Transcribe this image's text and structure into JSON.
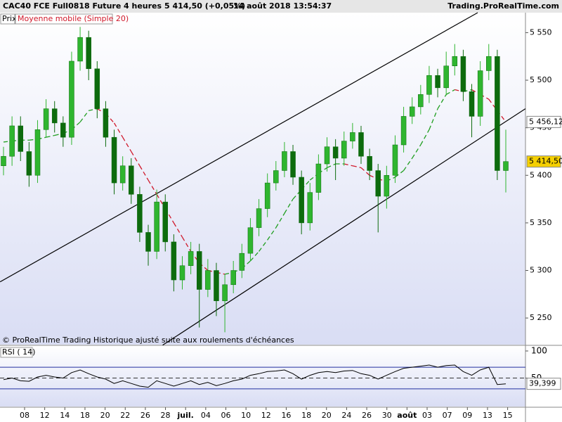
{
  "chart_data": {
    "type": "candlestick",
    "header": {
      "instrument": "CAC40 FCE Full0818 Future",
      "period": "4 heures",
      "quote": "5 414,50 (+0,05%)",
      "datetime": "14 août 2018 13:54:37",
      "site": "Trading.ProRealTime.com"
    },
    "legend": {
      "price": "Prix",
      "sma": "Moyenne mobile (Simple 20)"
    },
    "footnote": "© ProRealTime Trading  Historique ajusté suite aux roulements d'échéances",
    "x_labels": [
      "08",
      "12",
      "14",
      "18",
      "20",
      "22",
      "26",
      "28",
      "juil.",
      "04",
      "06",
      "10",
      "12",
      "16",
      "18",
      "20",
      "24",
      "26",
      "30",
      "août",
      "03",
      "07",
      "09",
      "13",
      "15"
    ],
    "open": [
      5410,
      5420,
      5452,
      5425,
      5400,
      5448,
      5470,
      5455,
      5440,
      5520,
      5545,
      5512,
      5470,
      5440,
      5392,
      5410,
      5380,
      5340,
      5320,
      5372,
      5330,
      5290,
      5305,
      5320,
      5280,
      5300,
      5268,
      5285,
      5300,
      5318,
      5345,
      5365,
      5392,
      5405,
      5425,
      5398,
      5350,
      5382,
      5412,
      5430,
      5418,
      5436,
      5445,
      5420,
      5405,
      5378,
      5400,
      5432,
      5462,
      5472,
      5485,
      5505,
      5492,
      5515,
      5525,
      5488,
      5462,
      5510,
      5525,
      5405
    ],
    "high": [
      5430,
      5462,
      5462,
      5435,
      5458,
      5480,
      5478,
      5462,
      5530,
      5556,
      5552,
      5520,
      5478,
      5448,
      5420,
      5418,
      5388,
      5348,
      5385,
      5380,
      5338,
      5315,
      5330,
      5328,
      5312,
      5308,
      5296,
      5310,
      5328,
      5355,
      5375,
      5402,
      5415,
      5435,
      5432,
      5405,
      5392,
      5422,
      5440,
      5438,
      5446,
      5455,
      5452,
      5428,
      5412,
      5410,
      5442,
      5472,
      5482,
      5495,
      5515,
      5512,
      5530,
      5538,
      5532,
      5496,
      5520,
      5538,
      5532,
      5448
    ],
    "low": [
      5400,
      5410,
      5415,
      5388,
      5392,
      5440,
      5445,
      5430,
      5432,
      5510,
      5500,
      5460,
      5430,
      5380,
      5384,
      5370,
      5330,
      5305,
      5312,
      5320,
      5278,
      5280,
      5296,
      5240,
      5272,
      5252,
      5235,
      5276,
      5292,
      5310,
      5336,
      5356,
      5384,
      5398,
      5390,
      5338,
      5342,
      5374,
      5404,
      5395,
      5410,
      5428,
      5412,
      5395,
      5340,
      5365,
      5392,
      5424,
      5454,
      5464,
      5476,
      5482,
      5484,
      5505,
      5478,
      5440,
      5452,
      5500,
      5395,
      5382
    ],
    "close": [
      5420,
      5452,
      5425,
      5400,
      5448,
      5470,
      5455,
      5440,
      5520,
      5545,
      5512,
      5470,
      5440,
      5392,
      5410,
      5380,
      5340,
      5320,
      5372,
      5330,
      5290,
      5305,
      5320,
      5280,
      5300,
      5268,
      5285,
      5300,
      5318,
      5345,
      5365,
      5392,
      5405,
      5425,
      5398,
      5350,
      5382,
      5412,
      5430,
      5418,
      5436,
      5445,
      5420,
      5405,
      5378,
      5400,
      5432,
      5462,
      5472,
      5485,
      5505,
      5492,
      5515,
      5525,
      5488,
      5462,
      5510,
      5525,
      5405,
      5414.5
    ],
    "close_label": "5 414,50",
    "sma": [
      5435,
      5436,
      5437,
      5437,
      5438,
      5440,
      5442,
      5444,
      5448,
      5456,
      5468,
      5470,
      5465,
      5455,
      5440,
      5425,
      5410,
      5395,
      5380,
      5365,
      5350,
      5335,
      5320,
      5308,
      5300,
      5298,
      5296,
      5298,
      5302,
      5310,
      5320,
      5332,
      5345,
      5360,
      5375,
      5385,
      5395,
      5402,
      5408,
      5412,
      5412,
      5410,
      5408,
      5400,
      5396,
      5394,
      5398,
      5405,
      5418,
      5432,
      5448,
      5470,
      5485,
      5490,
      5488,
      5490,
      5485,
      5480,
      5468,
      5456.12
    ],
    "sma_label": "5 456,12",
    "up_color": "#2fb52f",
    "down_color": "#0d6b0d",
    "sma_up_color": "#1f9e1f",
    "sma_down_color": "#d0182a",
    "trendlines": [
      {
        "x": [
          -0.4,
          55.7
        ],
        "y": [
          5288,
          5571
        ]
      },
      {
        "x": [
          18.7,
          61.3
        ],
        "y": [
          5221.5,
          5470
        ]
      }
    ],
    "ylim": [
      5222,
      5571
    ],
    "yticks": [
      {
        "value": 5250,
        "label": "5 250"
      },
      {
        "value": 5300,
        "label": "5 300"
      },
      {
        "value": 5350,
        "label": "5 350"
      },
      {
        "value": 5400,
        "label": "5 400"
      },
      {
        "value": 5450,
        "label": "5 450"
      },
      {
        "value": 5500,
        "label": "5 500"
      },
      {
        "value": 5550,
        "label": "5 550"
      }
    ],
    "rsi_title": "RSI ( 14)",
    "rsi": [
      47,
      50,
      45,
      44,
      52,
      55,
      52,
      50,
      60,
      65,
      58,
      52,
      48,
      40,
      45,
      40,
      35,
      33,
      45,
      40,
      35,
      40,
      45,
      38,
      42,
      36,
      40,
      45,
      48,
      55,
      58,
      62,
      63,
      65,
      58,
      48,
      55,
      60,
      62,
      60,
      63,
      64,
      58,
      55,
      48,
      55,
      62,
      68,
      70,
      72,
      74,
      70,
      73,
      74,
      62,
      55,
      65,
      70,
      38,
      39.399
    ],
    "rsi_label": "39,399",
    "rsi_levels": [
      70,
      50,
      30
    ],
    "rsi_ylim": [
      0,
      100
    ],
    "rsi_yticks": [
      100,
      50
    ]
  }
}
